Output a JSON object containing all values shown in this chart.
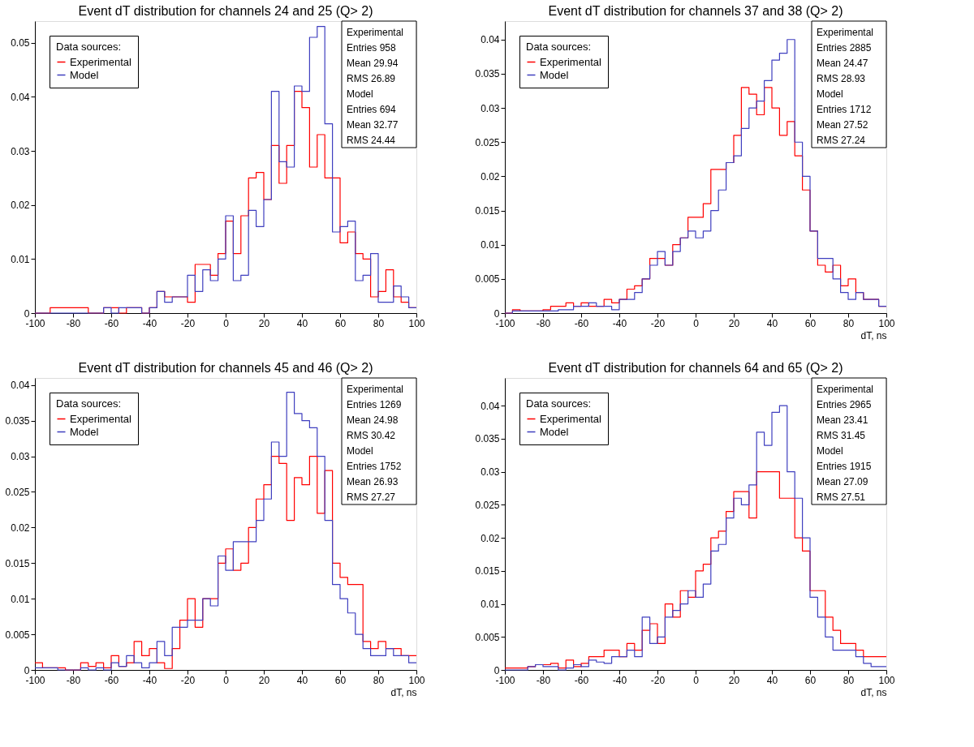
{
  "chart_data": [
    {
      "type": "histogram",
      "title": "Event dT distribution for channels 24 and 25 (Q> 2)",
      "legend_title": "Data sources:",
      "legend": "top left",
      "grid": false,
      "bins": [
        -100,
        -96,
        -92,
        -88,
        -84,
        -80,
        -76,
        -72,
        -68,
        -64,
        -60,
        -56,
        -52,
        -48,
        -44,
        -40,
        -36,
        -32,
        -28,
        -24,
        -20,
        -16,
        -12,
        -8,
        -4,
        0,
        4,
        8,
        12,
        16,
        20,
        24,
        28,
        32,
        36,
        40,
        44,
        48,
        52,
        56,
        60,
        64,
        68,
        72,
        76,
        80,
        84,
        88,
        92,
        96,
        100
      ],
      "xlim": [
        -100,
        100
      ],
      "xticks": [
        -100,
        -80,
        -60,
        -40,
        -20,
        0,
        20,
        40,
        60,
        80,
        100
      ],
      "ylim": [
        0,
        0.054
      ],
      "yticks": [
        0,
        0.01,
        0.02,
        0.03,
        0.04,
        0.05
      ],
      "series": [
        {
          "name": "Experimental",
          "color": "#ff0000",
          "values": [
            0,
            0,
            0.001,
            0.001,
            0.001,
            0.001,
            0.001,
            0,
            0,
            0.001,
            0.001,
            0,
            0.001,
            0.001,
            0,
            0.001,
            0.004,
            0.003,
            0.003,
            0.003,
            0.002,
            0.009,
            0.009,
            0.007,
            0.011,
            0.017,
            0.011,
            0.018,
            0.025,
            0.026,
            0.021,
            0.031,
            0.024,
            0.031,
            0.041,
            0.038,
            0.027,
            0.033,
            0.025,
            0.025,
            0.013,
            0.015,
            0.011,
            0.01,
            0.003,
            0.004,
            0.008,
            0.003,
            0.002,
            0.001
          ]
        },
        {
          "name": "Model",
          "color": "#3f3fbf",
          "values": [
            0,
            0,
            0,
            0,
            0,
            0,
            0,
            0,
            0,
            0.001,
            0,
            0.001,
            0.001,
            0.001,
            0,
            0.001,
            0.004,
            0.002,
            0.003,
            0.003,
            0.007,
            0.004,
            0.008,
            0.006,
            0.01,
            0.018,
            0.006,
            0.007,
            0.019,
            0.016,
            0.021,
            0.041,
            0.028,
            0.027,
            0.042,
            0.041,
            0.051,
            0.053,
            0.035,
            0.015,
            0.016,
            0.017,
            0.006,
            0.007,
            0.011,
            0.002,
            0.002,
            0.005,
            0.003,
            0.001
          ]
        }
      ],
      "annotations": [
        "Experimental",
        "Entries 958",
        "Mean 29.94",
        "RMS 26.89",
        "Model",
        "Entries 694",
        "Mean 32.77",
        "RMS 24.44"
      ]
    },
    {
      "type": "histogram",
      "title": "Event dT distribution for channels 37 and 38 (Q> 2)",
      "xlabel": "dT, ns",
      "legend_title": "Data sources:",
      "legend": "top left",
      "grid": false,
      "bins": [
        -100,
        -96,
        -92,
        -88,
        -84,
        -80,
        -76,
        -72,
        -68,
        -64,
        -60,
        -56,
        -52,
        -48,
        -44,
        -40,
        -36,
        -32,
        -28,
        -24,
        -20,
        -16,
        -12,
        -8,
        -4,
        0,
        4,
        8,
        12,
        16,
        20,
        24,
        28,
        32,
        36,
        40,
        44,
        48,
        52,
        56,
        60,
        64,
        68,
        72,
        76,
        80,
        84,
        88,
        92,
        96,
        100
      ],
      "xlim": [
        -100,
        100
      ],
      "xticks": [
        -100,
        -80,
        -60,
        -40,
        -20,
        0,
        20,
        40,
        60,
        80,
        100
      ],
      "ylim": [
        0,
        0.0427
      ],
      "yticks": [
        0,
        0.005,
        0.01,
        0.015,
        0.02,
        0.025,
        0.03,
        0.035,
        0.04
      ],
      "series": [
        {
          "name": "Experimental",
          "color": "#ff0000",
          "values": [
            0,
            0.0005,
            0.0003,
            0.0003,
            0.0003,
            0.0005,
            0.001,
            0.001,
            0.0015,
            0.001,
            0.0015,
            0.001,
            0.001,
            0.002,
            0.0015,
            0.002,
            0.0035,
            0.004,
            0.005,
            0.008,
            0.008,
            0.007,
            0.01,
            0.011,
            0.014,
            0.014,
            0.016,
            0.021,
            0.021,
            0.022,
            0.026,
            0.033,
            0.032,
            0.029,
            0.033,
            0.03,
            0.026,
            0.028,
            0.023,
            0.018,
            0.012,
            0.007,
            0.006,
            0.007,
            0.004,
            0.005,
            0.003,
            0.002,
            0.002,
            0.001
          ]
        },
        {
          "name": "Model",
          "color": "#3f3fbf",
          "values": [
            0,
            0.0003,
            0.0003,
            0.0003,
            0.0003,
            0.0003,
            0.0003,
            0.0005,
            0.0005,
            0.001,
            0.001,
            0.0015,
            0.001,
            0.001,
            0.0005,
            0.002,
            0.002,
            0.003,
            0.005,
            0.007,
            0.009,
            0.007,
            0.009,
            0.011,
            0.012,
            0.011,
            0.012,
            0.015,
            0.018,
            0.022,
            0.023,
            0.027,
            0.03,
            0.031,
            0.034,
            0.037,
            0.038,
            0.04,
            0.025,
            0.02,
            0.012,
            0.008,
            0.008,
            0.005,
            0.003,
            0.002,
            0.003,
            0.002,
            0.002,
            0.001
          ]
        }
      ],
      "annotations": [
        "Experimental",
        "Entries 2885",
        "Mean 24.47",
        "RMS 28.93",
        "Model",
        "Entries 1712",
        "Mean 27.52",
        "RMS 27.24"
      ]
    },
    {
      "type": "histogram",
      "title": "Event dT distribution for channels 45 and 46 (Q> 2)",
      "xlabel": "dT, ns",
      "legend_title": "Data sources:",
      "legend": "top left",
      "grid": false,
      "bins": [
        -100,
        -96,
        -92,
        -88,
        -84,
        -80,
        -76,
        -72,
        -68,
        -64,
        -60,
        -56,
        -52,
        -48,
        -44,
        -40,
        -36,
        -32,
        -28,
        -24,
        -20,
        -16,
        -12,
        -8,
        -4,
        0,
        4,
        8,
        12,
        16,
        20,
        24,
        28,
        32,
        36,
        40,
        44,
        48,
        52,
        56,
        60,
        64,
        68,
        72,
        76,
        80,
        84,
        88,
        92,
        96,
        100
      ],
      "xlim": [
        -100,
        100
      ],
      "xticks": [
        -100,
        -80,
        -60,
        -40,
        -20,
        0,
        20,
        40,
        60,
        80,
        100
      ],
      "ylim": [
        0,
        0.041
      ],
      "yticks": [
        0,
        0.005,
        0.01,
        0.015,
        0.02,
        0.025,
        0.03,
        0.035,
        0.04
      ],
      "series": [
        {
          "name": "Experimental",
          "color": "#ff0000",
          "values": [
            0.001,
            0.0003,
            0.0003,
            0.0003,
            0,
            0,
            0.001,
            0.0005,
            0.001,
            0.0003,
            0.002,
            0.0005,
            0.001,
            0.004,
            0.002,
            0.003,
            0.001,
            0.0002,
            0.003,
            0.007,
            0.01,
            0.006,
            0.01,
            0.01,
            0.015,
            0.017,
            0.014,
            0.015,
            0.02,
            0.024,
            0.026,
            0.03,
            0.029,
            0.021,
            0.027,
            0.026,
            0.03,
            0.022,
            0.028,
            0.015,
            0.013,
            0.012,
            0.012,
            0.004,
            0.003,
            0.004,
            0.003,
            0.003,
            0.002,
            0.002
          ]
        },
        {
          "name": "Model",
          "color": "#3f3fbf",
          "values": [
            0.0003,
            0.0003,
            0.0003,
            0,
            0,
            0,
            0.0003,
            0,
            0.0003,
            0,
            0.001,
            0.0005,
            0.002,
            0.001,
            0.0003,
            0.001,
            0.004,
            0.002,
            0.006,
            0.006,
            0.007,
            0.007,
            0.01,
            0.009,
            0.016,
            0.014,
            0.018,
            0.018,
            0.018,
            0.021,
            0.024,
            0.032,
            0.03,
            0.039,
            0.036,
            0.035,
            0.034,
            0.03,
            0.021,
            0.012,
            0.01,
            0.008,
            0.005,
            0.003,
            0.002,
            0.002,
            0.003,
            0.002,
            0.002,
            0.001
          ]
        }
      ],
      "annotations": [
        "Experimental",
        "Entries 1269",
        "Mean 24.98",
        "RMS 30.42",
        "Model",
        "Entries 1752",
        "Mean 26.93",
        "RMS 27.27"
      ]
    },
    {
      "type": "histogram",
      "title": "Event dT distribution for channels 64 and 65 (Q> 2)",
      "xlabel": "dT, ns",
      "legend_title": "Data sources:",
      "legend": "top left",
      "grid": false,
      "bins": [
        -100,
        -96,
        -92,
        -88,
        -84,
        -80,
        -76,
        -72,
        -68,
        -64,
        -60,
        -56,
        -52,
        -48,
        -44,
        -40,
        -36,
        -32,
        -28,
        -24,
        -20,
        -16,
        -12,
        -8,
        -4,
        0,
        4,
        8,
        12,
        16,
        20,
        24,
        28,
        32,
        36,
        40,
        44,
        48,
        52,
        56,
        60,
        64,
        68,
        72,
        76,
        80,
        84,
        88,
        92,
        96,
        100
      ],
      "xlim": [
        -100,
        100
      ],
      "xticks": [
        -100,
        -80,
        -60,
        -40,
        -20,
        0,
        20,
        40,
        60,
        80,
        100
      ],
      "ylim": [
        0,
        0.0442
      ],
      "yticks": [
        0,
        0.005,
        0.01,
        0.015,
        0.02,
        0.025,
        0.03,
        0.035,
        0.04
      ],
      "series": [
        {
          "name": "Experimental",
          "color": "#ff0000",
          "values": [
            0.0003,
            0.0003,
            0.0003,
            0.0005,
            0.0008,
            0.0008,
            0.001,
            0.0003,
            0.0015,
            0.0005,
            0.001,
            0.002,
            0.002,
            0.003,
            0.003,
            0.002,
            0.004,
            0.003,
            0.006,
            0.007,
            0.004,
            0.01,
            0.008,
            0.012,
            0.011,
            0.015,
            0.016,
            0.02,
            0.021,
            0.024,
            0.027,
            0.027,
            0.023,
            0.03,
            0.03,
            0.03,
            0.026,
            0.026,
            0.02,
            0.018,
            0.012,
            0.012,
            0.008,
            0.006,
            0.004,
            0.004,
            0.003,
            0.002,
            0.002,
            0.002
          ]
        },
        {
          "name": "Model",
          "color": "#3f3fbf",
          "values": [
            0,
            0,
            0,
            0.0005,
            0.0008,
            0.0005,
            0.0005,
            0,
            0.0003,
            0.0008,
            0.0005,
            0.0015,
            0.0012,
            0.001,
            0.002,
            0.002,
            0.003,
            0.002,
            0.008,
            0.004,
            0.005,
            0.008,
            0.009,
            0.01,
            0.012,
            0.011,
            0.013,
            0.018,
            0.019,
            0.023,
            0.026,
            0.025,
            0.028,
            0.036,
            0.034,
            0.039,
            0.04,
            0.03,
            0.026,
            0.02,
            0.011,
            0.008,
            0.005,
            0.003,
            0.003,
            0.003,
            0.002,
            0.001,
            0.0005,
            0.0005
          ]
        }
      ],
      "annotations": [
        "Experimental",
        "Entries 2965",
        "Mean 23.41",
        "RMS 31.45",
        "Model",
        "Entries 1915",
        "Mean 27.09",
        "RMS 27.51"
      ]
    }
  ]
}
